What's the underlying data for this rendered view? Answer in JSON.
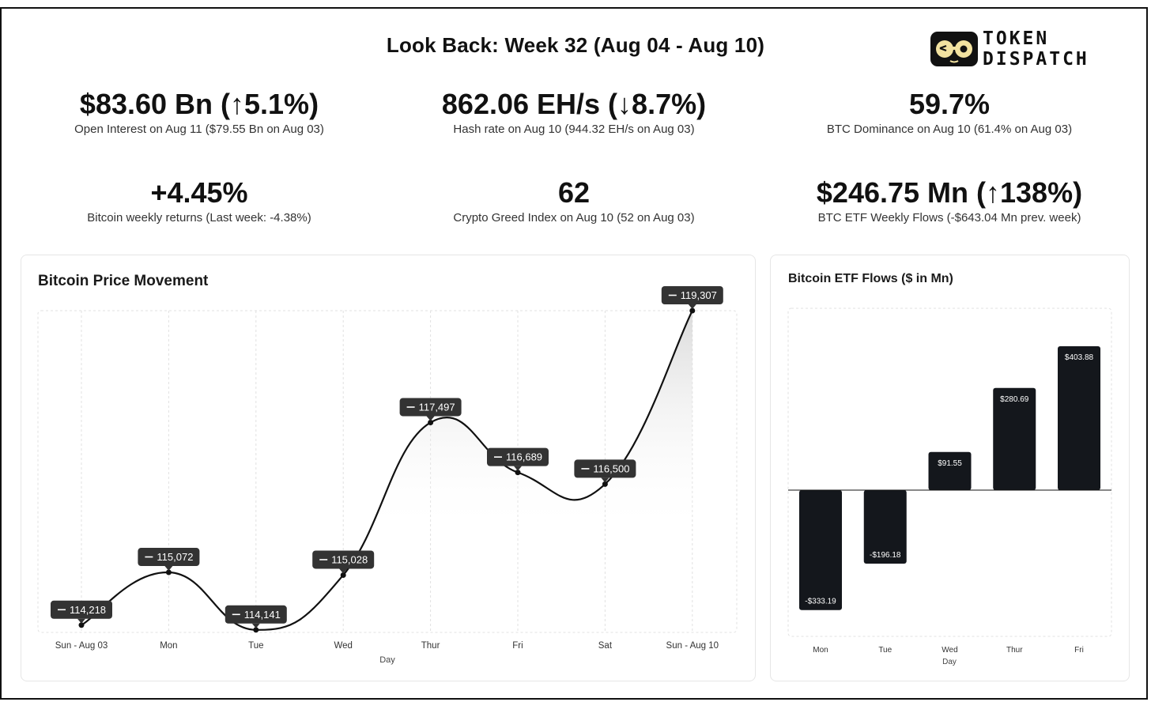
{
  "header": {
    "title": "Look Back: Week 32 (Aug 04 - Aug 10)"
  },
  "logo": {
    "line1": "TOKEN",
    "line2": "DISPATCH",
    "glyph": "glasses-face-icon"
  },
  "stats": [
    {
      "value": "$83.60 Bn (↑5.1%)",
      "label": "Open Interest on Aug 11 ($79.55 Bn on Aug 03)"
    },
    {
      "value": "862.06 EH/s (↓8.7%)",
      "label": "Hash rate on Aug 10 (944.32 EH/s on Aug 03)"
    },
    {
      "value": "59.7%",
      "label": "BTC Dominance on Aug 10 (61.4% on Aug 03)"
    },
    {
      "value": "+4.45%",
      "label": "Bitcoin weekly returns (Last week: -4.38%)"
    },
    {
      "value": "62",
      "label": "Crypto Greed Index on Aug 10 (52 on Aug 03)"
    },
    {
      "value": "$246.75 Mn (↑138%)",
      "label": "BTC ETF Weekly Flows (-$643.04 Mn prev. week)"
    }
  ],
  "chart_data": [
    {
      "type": "line",
      "title": "Bitcoin Price Movement",
      "xlabel": "Day",
      "ylabel": "",
      "categories": [
        "Sun - Aug 03",
        "Mon",
        "Tue",
        "Wed",
        "Thur",
        "Fri",
        "Sat",
        "Sun - Aug 10"
      ],
      "values": [
        114218,
        115072,
        114141,
        115028,
        117497,
        116689,
        116500,
        119307
      ],
      "data_labels": [
        "114,218",
        "115,072",
        "114,141",
        "115,028",
        "117,497",
        "116,689",
        "116,500",
        "119,307"
      ],
      "ylim": [
        114100,
        119307
      ],
      "grid": true
    },
    {
      "type": "bar",
      "title": "Bitcoin ETF Flows ($ in Mn)",
      "xlabel": "Day",
      "ylabel": "",
      "categories": [
        "Mon",
        "Tue",
        "Wed",
        "Thur",
        "Fri"
      ],
      "values": [
        -333.19,
        -196.18,
        91.55,
        280.69,
        403.88
      ],
      "data_labels": [
        "-$333.19",
        "-$196.18",
        "$91.55",
        "$280.69",
        "$403.88"
      ],
      "ylim": [
        -400,
        500
      ]
    }
  ],
  "colors": {
    "ink": "#111111",
    "bar": "#14171c",
    "tooltip": "#333333",
    "grid": "#e2e2e2"
  }
}
